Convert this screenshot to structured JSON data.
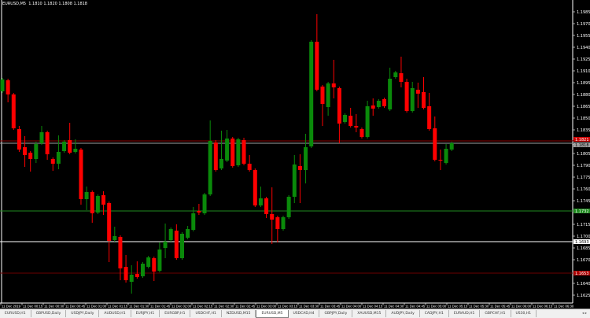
{
  "header": {
    "title": "EURUSD,M5  1.1810 1.1820 1.1808 1.1818"
  },
  "colors": {
    "bull": "#0a8a0a",
    "bear": "#ff0000",
    "background": "#000000",
    "grid_text": "#ffffff"
  },
  "chart_data": {
    "type": "candlestick",
    "symbol": "EURUSD",
    "timeframe": "M5",
    "ylim": [
      1.1615,
      1.2
    ],
    "price_ticks": [
      "1.1985",
      "1.1970",
      "1.1955",
      "1.1940",
      "1.1925",
      "1.1910",
      "1.1895",
      "1.1880",
      "1.1865",
      "1.1850",
      "1.1835",
      "1.1805",
      "1.1790",
      "1.1775",
      "1.1760",
      "1.1745",
      "1.1715",
      "1.1700",
      "1.1685",
      "1.1670",
      "1.1640",
      "1.1625"
    ],
    "time_labels": [
      "11 Dec 2019",
      "11 Dec 00:15",
      "11 Dec 00:30",
      "11 Dec 00:45",
      "11 Dec 01:00",
      "11 Dec 01:15",
      "11 Dec 01:30",
      "11 Dec 01:45",
      "11 Dec 02:00",
      "11 Dec 02:15",
      "11 Dec 02:30",
      "11 Dec 02:45",
      "11 Dec 03:00",
      "11 Dec 03:15",
      "11 Dec 03:30",
      "11 Dec 03:45",
      "11 Dec 04:00",
      "11 Dec 04:15",
      "11 Dec 04:30",
      "11 Dec 04:45",
      "11 Dec 05:00",
      "11 Dec 05:15",
      "11 Dec 05:30",
      "11 Dec 05:45",
      "11 Dec 06:00",
      "11 Dec 06:15",
      "11 Dec 06:30"
    ],
    "ohlc": [
      [
        1.1884,
        1.1901,
        1.1882,
        1.1899
      ],
      [
        1.1898,
        1.19,
        1.187,
        1.188
      ],
      [
        1.188,
        1.1882,
        1.1835,
        1.1837
      ],
      [
        1.1836,
        1.184,
        1.1807,
        1.181
      ],
      [
        1.1813,
        1.1827,
        1.1788,
        1.1803
      ],
      [
        1.1806,
        1.1808,
        1.1782,
        1.1798
      ],
      [
        1.1798,
        1.182,
        1.1793,
        1.1817
      ],
      [
        1.1818,
        1.184,
        1.1816,
        1.1832
      ],
      [
        1.1832,
        1.1834,
        1.1797,
        1.1804
      ],
      [
        1.1798,
        1.18,
        1.1783,
        1.1792
      ],
      [
        1.1792,
        1.1828,
        1.1785,
        1.1807
      ],
      [
        1.1808,
        1.1822,
        1.1806,
        1.182
      ],
      [
        1.1822,
        1.1844,
        1.1804,
        1.1806
      ],
      [
        1.1807,
        1.1823,
        1.1805,
        1.1811
      ],
      [
        1.181,
        1.1812,
        1.174,
        1.1747
      ],
      [
        1.1747,
        1.1763,
        1.1733,
        1.1756
      ],
      [
        1.1756,
        1.1758,
        1.1717,
        1.1729
      ],
      [
        1.173,
        1.1753,
        1.1728,
        1.1751
      ],
      [
        1.1752,
        1.1757,
        1.1727,
        1.174
      ],
      [
        1.1742,
        1.1744,
        1.1667,
        1.1694
      ],
      [
        1.1695,
        1.1712,
        1.1693,
        1.17
      ],
      [
        1.1699,
        1.1701,
        1.1644,
        1.1659
      ],
      [
        1.1661,
        1.1676,
        1.1641,
        1.1644
      ],
      [
        1.1642,
        1.1663,
        1.1627,
        1.1651
      ],
      [
        1.1652,
        1.1668,
        1.1646,
        1.1648
      ],
      [
        1.1649,
        1.1667,
        1.1647,
        1.1665
      ],
      [
        1.1661,
        1.1675,
        1.1659,
        1.1673
      ],
      [
        1.1672,
        1.1674,
        1.1643,
        1.1655
      ],
      [
        1.1656,
        1.1692,
        1.1654,
        1.1683
      ],
      [
        1.1685,
        1.1716,
        1.1672,
        1.1693
      ],
      [
        1.1695,
        1.1711,
        1.1693,
        1.1709
      ],
      [
        1.1707,
        1.1715,
        1.167,
        1.1672
      ],
      [
        1.1672,
        1.1705,
        1.167,
        1.1703
      ],
      [
        1.1698,
        1.1713,
        1.1696,
        1.1709
      ],
      [
        1.1708,
        1.1737,
        1.1706,
        1.1729
      ],
      [
        1.1732,
        1.1741,
        1.1727,
        1.173
      ],
      [
        1.1729,
        1.1755,
        1.1727,
        1.1753
      ],
      [
        1.1753,
        1.1847,
        1.1751,
        1.1821
      ],
      [
        1.1819,
        1.1822,
        1.1782,
        1.1784
      ],
      [
        1.1786,
        1.1834,
        1.1784,
        1.1798
      ],
      [
        1.1796,
        1.1835,
        1.1794,
        1.1824
      ],
      [
        1.1824,
        1.1826,
        1.1787,
        1.1789
      ],
      [
        1.179,
        1.1825,
        1.1788,
        1.1823
      ],
      [
        1.1822,
        1.1825,
        1.179,
        1.1792
      ],
      [
        1.1792,
        1.1803,
        1.1782,
        1.1784
      ],
      [
        1.1784,
        1.1786,
        1.1737,
        1.1739
      ],
      [
        1.1739,
        1.1763,
        1.1737,
        1.1748
      ],
      [
        1.1748,
        1.175,
        1.1723,
        1.1728
      ],
      [
        1.1728,
        1.1762,
        1.169,
        1.1721
      ],
      [
        1.1724,
        1.1726,
        1.1692,
        1.1709
      ],
      [
        1.1709,
        1.1726,
        1.1707,
        1.1724
      ],
      [
        1.1724,
        1.1752,
        1.1722,
        1.175
      ],
      [
        1.175,
        1.1803,
        1.1742,
        1.1791
      ],
      [
        1.1789,
        1.1804,
        1.1742,
        1.1784
      ],
      [
        1.1784,
        1.183,
        1.1767,
        1.1813
      ],
      [
        1.1814,
        1.1949,
        1.1812,
        1.1947
      ],
      [
        1.1947,
        1.1982,
        1.1884,
        1.1886
      ],
      [
        1.189,
        1.1892,
        1.184,
        1.1868
      ],
      [
        1.1864,
        1.1896,
        1.1853,
        1.1894
      ],
      [
        1.1894,
        1.1924,
        1.1875,
        1.1889
      ],
      [
        1.1888,
        1.189,
        1.1818,
        1.1843
      ],
      [
        1.1845,
        1.1856,
        1.1843,
        1.1854
      ],
      [
        1.1853,
        1.1863,
        1.1838,
        1.184
      ],
      [
        1.184,
        1.1855,
        1.1832,
        1.1838
      ],
      [
        1.1836,
        1.1838,
        1.1824,
        1.1826
      ],
      [
        1.1826,
        1.1872,
        1.1824,
        1.1865
      ],
      [
        1.1866,
        1.1875,
        1.1853,
        1.1862
      ],
      [
        1.1864,
        1.1874,
        1.1862,
        1.1872
      ],
      [
        1.1874,
        1.1876,
        1.1863,
        1.1865
      ],
      [
        1.1861,
        1.1914,
        1.1859,
        1.19
      ],
      [
        1.1902,
        1.191,
        1.19,
        1.1908
      ],
      [
        1.1907,
        1.1928,
        1.1889,
        1.1896
      ],
      [
        1.1896,
        1.19,
        1.1857,
        1.1859
      ],
      [
        1.1859,
        1.1896,
        1.1857,
        1.1888
      ],
      [
        1.1886,
        1.1895,
        1.1863,
        1.1881
      ],
      [
        1.1883,
        1.1902,
        1.1861,
        1.1863
      ],
      [
        1.1865,
        1.1882,
        1.1834,
        1.1836
      ],
      [
        1.1837,
        1.1852,
        1.1795,
        1.1797
      ],
      [
        1.1797,
        1.181,
        1.1784,
        1.1796
      ],
      [
        1.1793,
        1.1817,
        1.1791,
        1.1811
      ],
      [
        1.181,
        1.182,
        1.1808,
        1.1818
      ]
    ],
    "hlines": [
      {
        "price": 1.1821,
        "color": "#8b0000",
        "label": "1.1821",
        "label_bg": "#cc0000"
      },
      {
        "price": 1.1818,
        "color": "#a0a0a0",
        "label": "1.1818",
        "label_bg": "#a0a0a0"
      },
      {
        "price": 1.1732,
        "color": "#1f8a1f",
        "label": "1.1732",
        "label_bg": "#1f8a1f"
      },
      {
        "price": 1.1693,
        "color": "#ffffff",
        "label": "1.1693",
        "label_bg": "#ffffff"
      },
      {
        "price": 1.1653,
        "color": "#6b0000",
        "label": "1.1653",
        "label_bg": "#aa0000"
      }
    ]
  },
  "tabs": [
    {
      "label": "EURUSD,H1",
      "active": false
    },
    {
      "label": "GBPUSD,Daily",
      "active": false
    },
    {
      "label": "USDJPY,Daily",
      "active": false
    },
    {
      "label": "AUDUSD,H1",
      "active": false
    },
    {
      "label": "EURJPY,H1",
      "active": false
    },
    {
      "label": "EURGBP,H1",
      "active": false
    },
    {
      "label": "USDCHF,H1",
      "active": false
    },
    {
      "label": "NZDUSD,M15",
      "active": false
    },
    {
      "label": "EURUSD,M5",
      "active": true
    },
    {
      "label": "USDCAD,H4",
      "active": false
    },
    {
      "label": "GBPJPY,Daily",
      "active": false
    },
    {
      "label": "XAUUSD,M15",
      "active": false
    },
    {
      "label": "AUDJPY,Daily",
      "active": false
    },
    {
      "label": "CADJPY,H1",
      "active": false
    },
    {
      "label": "EURAUD,H1",
      "active": false
    },
    {
      "label": "GBPCHF,H1",
      "active": false
    },
    {
      "label": "US30,H1",
      "active": false
    }
  ],
  "tab_scroll": "◂ ▸"
}
